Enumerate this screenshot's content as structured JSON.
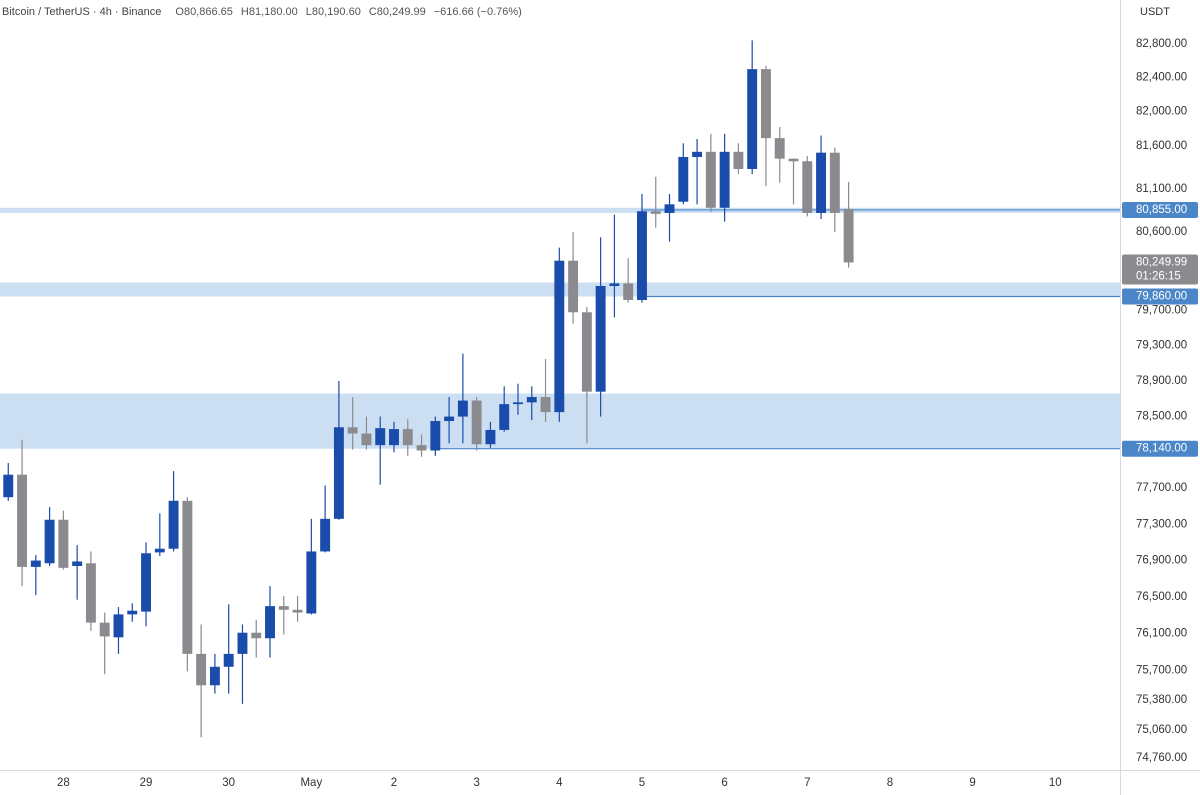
{
  "chart_data": {
    "type": "candlestick",
    "header": {
      "symbol": "Bitcoin / TetherUS · 4h · Binance",
      "ohlc": [
        "O80,866.65",
        "H81,180.00",
        "L80,190.60",
        "C80,249.99",
        "−616.66 (−0.76%)"
      ]
    },
    "currency": "USDT",
    "up_color": "#1a4cab",
    "down_color": "#8b8b8f",
    "x": [
      0,
      1,
      2,
      3,
      4,
      5,
      6,
      7,
      8,
      9,
      10,
      11,
      12,
      13,
      14,
      15,
      16,
      17,
      18,
      19,
      20,
      21,
      22,
      23,
      24,
      25,
      26,
      27,
      28,
      29,
      30,
      31,
      32,
      33,
      34,
      35,
      36,
      37,
      38,
      39,
      40,
      41,
      42,
      43,
      44,
      45,
      46,
      47,
      48,
      49,
      50,
      51,
      52,
      53,
      54,
      55,
      56,
      57,
      58,
      59,
      60,
      61
    ],
    "open": [
      77600,
      77850,
      76830,
      76870,
      77350,
      76840,
      76870,
      76220,
      76060,
      76310,
      76340,
      76990,
      77030,
      77560,
      75880,
      75540,
      75740,
      75880,
      76110,
      76050,
      76400,
      76360,
      76320,
      77000,
      77360,
      78380,
      78310,
      78180,
      78180,
      78360,
      78180,
      78120,
      78450,
      78500,
      78680,
      78190,
      78350,
      78640,
      78660,
      78720,
      78550,
      80270,
      79680,
      78780,
      79980,
      80010,
      79820,
      80840,
      80820,
      80950,
      81470,
      81530,
      80880,
      81530,
      81330,
      82500,
      81690,
      81450,
      81420,
      80820,
      81520,
      80866.65
    ],
    "high": [
      77980,
      78240,
      76960,
      77490,
      77450,
      77070,
      77000,
      76330,
      76390,
      76430,
      77100,
      77420,
      77890,
      77600,
      76200,
      75880,
      76420,
      76200,
      76250,
      76620,
      76510,
      76510,
      77360,
      77730,
      78900,
      78720,
      78500,
      78500,
      78440,
      78470,
      78300,
      78500,
      78720,
      79210,
      78720,
      78440,
      78840,
      78870,
      78840,
      79150,
      80420,
      80600,
      79740,
      80540,
      80800,
      80300,
      81040,
      81240,
      81040,
      81630,
      81680,
      81740,
      81740,
      81630,
      82840,
      82540,
      81820,
      81450,
      81480,
      81720,
      81580,
      81180
    ],
    "low": [
      77560,
      76620,
      76520,
      76840,
      76800,
      76470,
      76130,
      75660,
      75880,
      76230,
      76180,
      76950,
      77000,
      75690,
      74980,
      75450,
      75450,
      75340,
      75840,
      75840,
      76090,
      76230,
      76310,
      76990,
      77350,
      78130,
      78130,
      77740,
      78100,
      78060,
      78050,
      78060,
      78200,
      78200,
      78120,
      78150,
      78330,
      78520,
      78460,
      78440,
      78440,
      79550,
      78200,
      78500,
      79620,
      79790,
      79790,
      80650,
      80490,
      80920,
      80920,
      80830,
      80720,
      81270,
      81270,
      81130,
      81170,
      80920,
      80780,
      80750,
      80600,
      80190.6
    ],
    "close": [
      77850,
      76830,
      76900,
      77350,
      76820,
      76890,
      76220,
      76070,
      76310,
      76350,
      76980,
      77030,
      77560,
      75880,
      75540,
      75740,
      75880,
      76110,
      76050,
      76400,
      76360,
      76330,
      77000,
      77360,
      78380,
      78310,
      78180,
      78370,
      78360,
      78180,
      78120,
      78450,
      78500,
      78680,
      78190,
      78350,
      78640,
      78660,
      78720,
      78550,
      80270,
      79680,
      78780,
      79980,
      80010,
      79820,
      80840,
      80810,
      80920,
      81470,
      81530,
      80880,
      81530,
      81330,
      82500,
      81690,
      81450,
      81420,
      80820,
      81520,
      80820,
      80249.99
    ],
    "log_scale": true,
    "grid": false,
    "ylim": [
      74630,
      83320
    ],
    "yticks": [
      {
        "value": 74760,
        "label": "74,760.00"
      },
      {
        "value": 75060,
        "label": "75,060.00"
      },
      {
        "value": 75380,
        "label": "75,380.00"
      },
      {
        "value": 75700,
        "label": "75,700.00"
      },
      {
        "value": 76100,
        "label": "76,100.00"
      },
      {
        "value": 76500,
        "label": "76,500.00"
      },
      {
        "value": 76900,
        "label": "76,900.00"
      },
      {
        "value": 77300,
        "label": "77,300.00"
      },
      {
        "value": 77700,
        "label": "77,700.00"
      },
      {
        "value": 78500,
        "label": "78,500.00"
      },
      {
        "value": 78900,
        "label": "78,900.00"
      },
      {
        "value": 79300,
        "label": "79,300.00"
      },
      {
        "value": 79700,
        "label": "79,700.00"
      },
      {
        "value": 80600,
        "label": "80,600.00"
      },
      {
        "value": 81100,
        "label": "81,100.00"
      },
      {
        "value": 81600,
        "label": "81,600.00"
      },
      {
        "value": 82000,
        "label": "82,000.00"
      },
      {
        "value": 82400,
        "label": "82,400.00"
      },
      {
        "value": 82800,
        "label": "82,800.00"
      }
    ],
    "xlim": [
      -0.6,
      80.7
    ],
    "xticks": [
      {
        "value": 4,
        "label": "28"
      },
      {
        "value": 10,
        "label": "29"
      },
      {
        "value": 16,
        "label": "30"
      },
      {
        "value": 22,
        "label": "May"
      },
      {
        "value": 28,
        "label": "2"
      },
      {
        "value": 34,
        "label": "3"
      },
      {
        "value": 40,
        "label": "4"
      },
      {
        "value": 46,
        "label": "5"
      },
      {
        "value": 52,
        "label": "6"
      },
      {
        "value": 58,
        "label": "7"
      },
      {
        "value": 64,
        "label": "8"
      },
      {
        "value": 70,
        "label": "9"
      },
      {
        "value": 76,
        "label": "10"
      }
    ],
    "zones": [
      {
        "from": 80820,
        "to": 80880
      },
      {
        "from": 79860,
        "to": 80020
      },
      {
        "from": 78140,
        "to": 78760
      }
    ],
    "zone_color": "#c7dbf1",
    "level_color": "#4a86c8",
    "levels": [
      {
        "value": 80855,
        "label": "80,855.00",
        "from_x": 46
      },
      {
        "value": 79860,
        "label": "79,860.00",
        "from_x": 46
      },
      {
        "value": 78140,
        "label": "78,140.00",
        "from_x": 31
      }
    ],
    "last_price": {
      "value": 80249.99,
      "label": "80,249.99",
      "countdown": "01:26:15"
    }
  }
}
